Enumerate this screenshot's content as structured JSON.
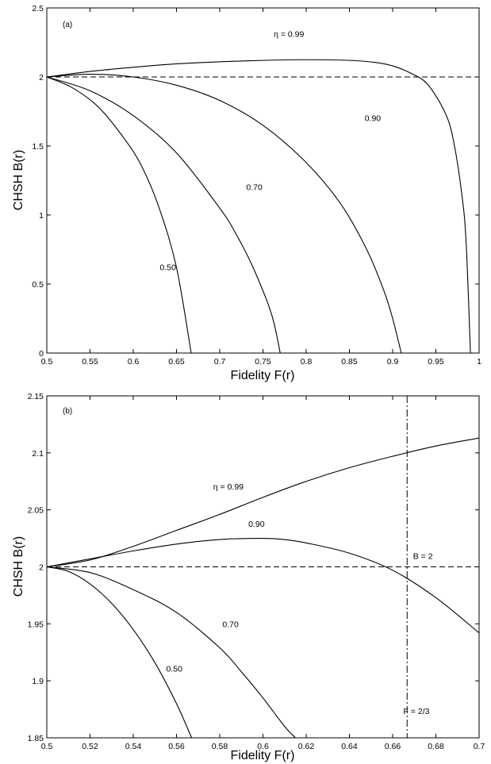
{
  "chart_data": [
    {
      "type": "line",
      "panel_label": "(a)",
      "xlabel": "Fidelity  F(r)",
      "ylabel": "CHSH  B(r)",
      "xlim": [
        0.5,
        1.0
      ],
      "ylim": [
        0,
        2.5
      ],
      "xticks": [
        "0.5",
        "0.55",
        "0.6",
        "0.65",
        "0.7",
        "0.75",
        "0.8",
        "0.85",
        "0.9",
        "0.95",
        "1"
      ],
      "yticks": [
        "0",
        "0.5",
        "1",
        "1.5",
        "2",
        "2.5"
      ],
      "reference_lines": [
        {
          "orientation": "horizontal",
          "value": 2,
          "style": "dashed"
        }
      ],
      "series": [
        {
          "name": "η = 0.99",
          "x": [
            0.5,
            0.55,
            0.6,
            0.65,
            0.7,
            0.75,
            0.8,
            0.85,
            0.88,
            0.9,
            0.92,
            0.94,
            0.96,
            0.97,
            0.98,
            0.985,
            0.99
          ],
          "y": [
            2.0,
            2.04,
            2.07,
            2.095,
            2.11,
            2.12,
            2.125,
            2.12,
            2.105,
            2.08,
            2.03,
            1.95,
            1.75,
            1.55,
            1.15,
            0.8,
            0.0
          ]
        },
        {
          "name": "0.90",
          "x": [
            0.5,
            0.55,
            0.6,
            0.65,
            0.7,
            0.75,
            0.8,
            0.84,
            0.87,
            0.89,
            0.9,
            0.91
          ],
          "y": [
            2.0,
            2.02,
            2.0,
            1.94,
            1.83,
            1.65,
            1.38,
            1.08,
            0.75,
            0.45,
            0.25,
            0.0
          ]
        },
        {
          "name": "0.70",
          "x": [
            0.5,
            0.55,
            0.6,
            0.65,
            0.7,
            0.72,
            0.74,
            0.76,
            0.77
          ],
          "y": [
            2.0,
            1.9,
            1.72,
            1.45,
            1.05,
            0.85,
            0.6,
            0.28,
            0.0
          ]
        },
        {
          "name": "0.50",
          "x": [
            0.5,
            0.53,
            0.56,
            0.59,
            0.61,
            0.63,
            0.65,
            0.667
          ],
          "y": [
            2.0,
            1.92,
            1.78,
            1.55,
            1.35,
            1.05,
            0.62,
            0.0
          ]
        }
      ],
      "curve_labels": [
        {
          "text": "η = 0.99",
          "x": 0.78,
          "y": 2.29
        },
        {
          "text": "0.90",
          "x": 0.877,
          "y": 1.68
        },
        {
          "text": "0.70",
          "x": 0.74,
          "y": 1.18
        },
        {
          "text": "0.50",
          "x": 0.64,
          "y": 0.6
        }
      ]
    },
    {
      "type": "line",
      "panel_label": "(b)",
      "xlabel": "Fidelity  F(r)",
      "ylabel": "CHSH  B(r)",
      "xlim": [
        0.5,
        0.7
      ],
      "ylim": [
        1.85,
        2.15
      ],
      "xticks": [
        "0.5",
        "0.52",
        "0.54",
        "0.56",
        "0.58",
        "0.6",
        "0.62",
        "0.64",
        "0.66",
        "0.68",
        "0.7"
      ],
      "yticks": [
        "1.85",
        "1.9",
        "1.95",
        "2",
        "2.05",
        "2.1",
        "2.15"
      ],
      "reference_lines": [
        {
          "orientation": "horizontal",
          "value": 2,
          "style": "dashed",
          "label": "B = 2"
        },
        {
          "orientation": "vertical",
          "value": 0.6667,
          "style": "dash-dot",
          "label": "F = 2/3"
        }
      ],
      "series": [
        {
          "name": "η = 0.99",
          "x": [
            0.5,
            0.52,
            0.54,
            0.56,
            0.58,
            0.6,
            0.62,
            0.64,
            0.66,
            0.68,
            0.7
          ],
          "y": [
            2.0,
            2.006,
            2.018,
            2.032,
            2.046,
            2.061,
            2.075,
            2.087,
            2.097,
            2.106,
            2.113
          ]
        },
        {
          "name": "0.90",
          "x": [
            0.5,
            0.52,
            0.54,
            0.56,
            0.58,
            0.6,
            0.61,
            0.62,
            0.64,
            0.66,
            0.68,
            0.7
          ],
          "y": [
            2.0,
            2.007,
            2.014,
            2.02,
            2.024,
            2.025,
            2.024,
            2.021,
            2.012,
            1.997,
            1.973,
            1.942
          ]
        },
        {
          "name": "0.70",
          "x": [
            0.5,
            0.52,
            0.54,
            0.56,
            0.58,
            0.59,
            0.6,
            0.61,
            0.615
          ],
          "y": [
            2.0,
            1.995,
            1.98,
            1.96,
            1.929,
            1.908,
            1.885,
            1.86,
            1.85
          ]
        },
        {
          "name": "0.50",
          "x": [
            0.5,
            0.51,
            0.52,
            0.53,
            0.54,
            0.55,
            0.56,
            0.567
          ],
          "y": [
            2.0,
            1.996,
            1.985,
            1.968,
            1.945,
            1.916,
            1.88,
            1.85
          ]
        }
      ],
      "curve_labels": [
        {
          "text": "η = 0.99",
          "x": 0.584,
          "y": 2.068
        },
        {
          "text": "0.90",
          "x": 0.597,
          "y": 2.035
        },
        {
          "text": "0.70",
          "x": 0.585,
          "y": 1.947
        },
        {
          "text": "0.50",
          "x": 0.559,
          "y": 1.908
        },
        {
          "text": "B = 2",
          "x": 0.674,
          "y": 2.007
        },
        {
          "text": "F = 2/3",
          "x": 0.671,
          "y": 1.871
        }
      ]
    }
  ]
}
